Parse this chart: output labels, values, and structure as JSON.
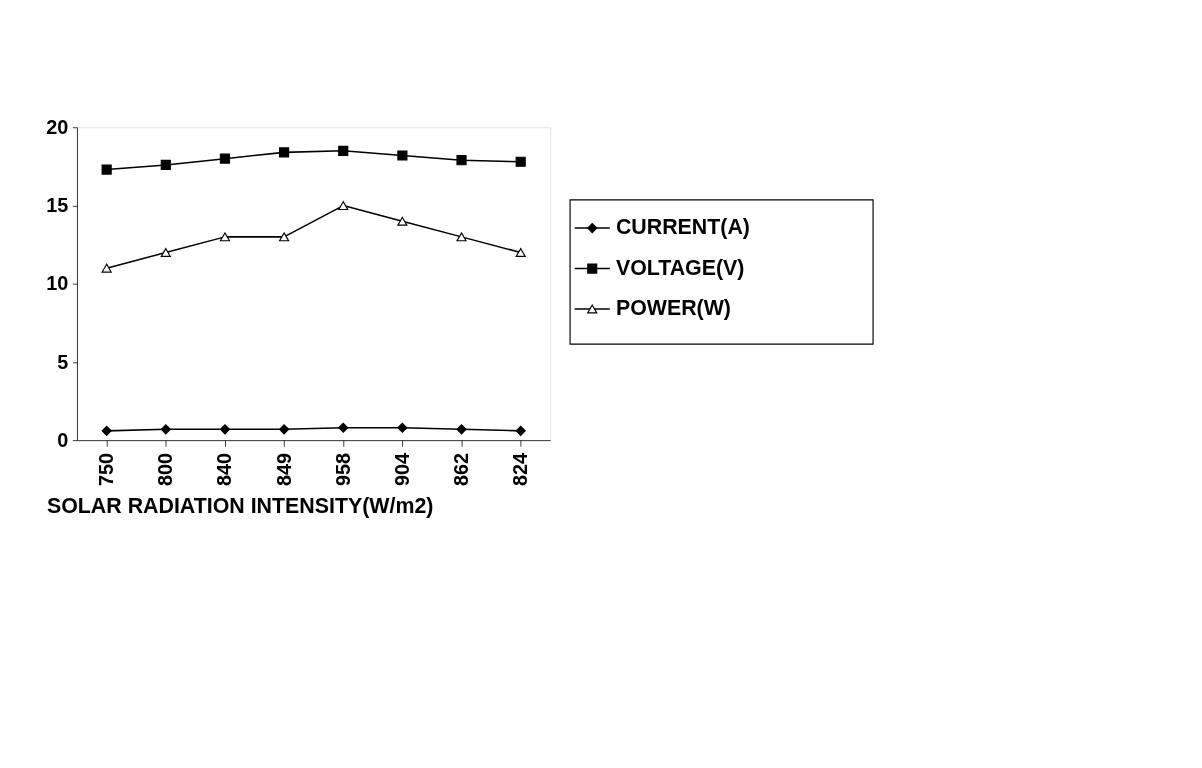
{
  "chart_data": {
    "type": "line",
    "xlabel": "SOLAR RADIATION INTENSITY(W/m2)",
    "categories": [
      "750",
      "800",
      "840",
      "849",
      "958",
      "904",
      "862",
      "824"
    ],
    "series": [
      {
        "name": "CURRENT(A)",
        "color": "#000000",
        "marker": "diamond",
        "values": [
          0.6,
          0.7,
          0.7,
          0.7,
          0.8,
          0.8,
          0.7,
          0.6
        ]
      },
      {
        "name": "VOLTAGE(V)",
        "color": "#000000",
        "marker": "square",
        "values": [
          17.3,
          17.6,
          18.0,
          18.4,
          18.5,
          18.2,
          17.9,
          17.8
        ]
      },
      {
        "name": "POWER(W)",
        "color": "#000000",
        "marker": "triangle",
        "values": [
          11,
          12,
          13,
          13,
          15,
          14,
          13,
          12
        ]
      }
    ],
    "ylim": [
      0,
      20
    ],
    "yticks": [
      0,
      5,
      10,
      15,
      20
    ],
    "grid": false,
    "legend": "right",
    "line_style": "solid"
  }
}
